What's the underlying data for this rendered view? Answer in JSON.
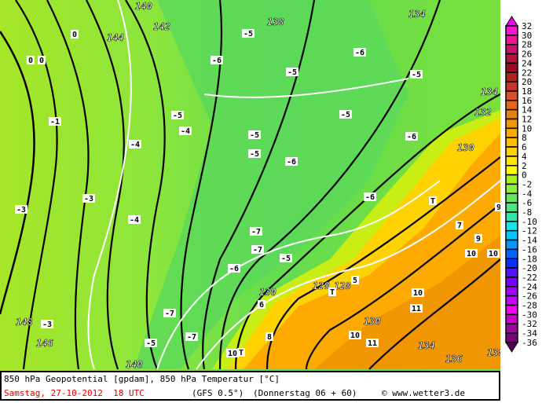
{
  "title": "850 hPa Geopotential [gpdam], 850 hPa Temperatur [°C]",
  "valid_time": "Samstag, 27-10-2012  18 UTC",
  "model": "(GFS 0.5°)",
  "run": "(Donnerstag 06 + 60)",
  "copyright": "© www.wetter3.de",
  "colorbar": {
    "labels": [
      "32",
      "30",
      "28",
      "26",
      "24",
      "22",
      "20",
      "18",
      "16",
      "14",
      "12",
      "10",
      "8",
      "6",
      "4",
      "2",
      "0",
      "-2",
      "-4",
      "-6",
      "-8",
      "-10",
      "-12",
      "-14",
      "-16",
      "-18",
      "-20",
      "-22",
      "-24",
      "-26",
      "-28",
      "-30",
      "-32",
      "-34",
      "-36"
    ],
    "colors": [
      "#f000f0",
      "#ff14d2",
      "#f01496",
      "#c8146e",
      "#b4143c",
      "#a00a1e",
      "#b41e1e",
      "#c83228",
      "#dc5028",
      "#e66414",
      "#e6820a",
      "#f09600",
      "#ffaa00",
      "#ffbe00",
      "#ffd200",
      "#ffe600",
      "#ffff00",
      "#aaf01e",
      "#8cf03c",
      "#64e65a",
      "#46e682",
      "#2de6aa",
      "#14e6e6",
      "#00c8ff",
      "#0096ff",
      "#0064ff",
      "#0032ff",
      "#5014ff",
      "#7800ff",
      "#a000ff",
      "#c800ff",
      "#f000f0",
      "#c800c8",
      "#a000a0",
      "#780078",
      "#500050"
    ]
  },
  "map_labels": {
    "geopotential": [
      "140",
      "144",
      "142",
      "138",
      "134",
      "134",
      "132",
      "130",
      "130",
      "128",
      "128",
      "130",
      "134",
      "136",
      "138",
      "140",
      "146",
      "148"
    ],
    "temperature": [
      "-5",
      "-5",
      "-5",
      "-5",
      "-5",
      "-5",
      "-5",
      "-5",
      "-5",
      "-4",
      "-4",
      "-4",
      "-3",
      "-3",
      "-3",
      "-1",
      "0",
      "0",
      "0",
      "-6",
      "-6",
      "-6",
      "-6",
      "-6",
      "-7",
      "-7",
      "-7",
      "-7",
      "-6",
      "5",
      "6",
      "7",
      "9",
      "9",
      "10",
      "10",
      "10",
      "10",
      "10",
      "11",
      "11",
      "8",
      "T",
      "T",
      "T"
    ]
  },
  "colors": {
    "cold_green": "#64dc46",
    "mild_green": "#9be628",
    "orange": "#ffaa00",
    "yellow": "#ffd200"
  }
}
